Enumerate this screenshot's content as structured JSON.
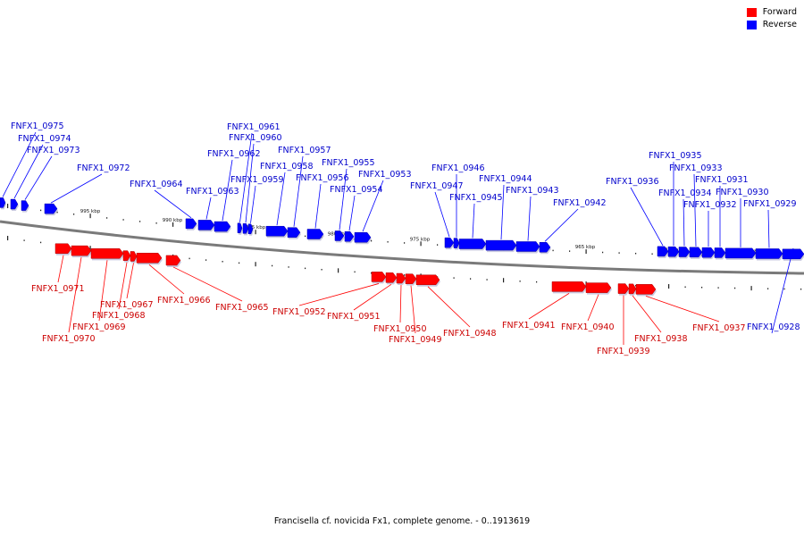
{
  "legend": {
    "forward_label": "Forward",
    "reverse_label": "Reverse",
    "forward_color": "#ff0000",
    "reverse_color": "#0000ff"
  },
  "caption": "Francisella cf. novicida Fx1, complete genome. - 0..1913619",
  "scale_unit": "kbp",
  "scale_ticks": [
    995,
    990,
    985,
    980,
    975,
    970,
    965,
    960,
    955
  ],
  "genes": [
    {
      "id": "FNFX1_0975",
      "strand": "reverse"
    },
    {
      "id": "FNFX1_0974",
      "strand": "reverse"
    },
    {
      "id": "FNFX1_0973",
      "strand": "reverse"
    },
    {
      "id": "FNFX1_0972",
      "strand": "reverse"
    },
    {
      "id": "FNFX1_0971",
      "strand": "forward"
    },
    {
      "id": "FNFX1_0970",
      "strand": "forward"
    },
    {
      "id": "FNFX1_0969",
      "strand": "forward"
    },
    {
      "id": "FNFX1_0968",
      "strand": "forward"
    },
    {
      "id": "FNFX1_0967",
      "strand": "forward"
    },
    {
      "id": "FNFX1_0966",
      "strand": "forward"
    },
    {
      "id": "FNFX1_0965",
      "strand": "forward"
    },
    {
      "id": "FNFX1_0964",
      "strand": "reverse"
    },
    {
      "id": "FNFX1_0963",
      "strand": "reverse"
    },
    {
      "id": "FNFX1_0962",
      "strand": "reverse"
    },
    {
      "id": "FNFX1_0961",
      "strand": "reverse"
    },
    {
      "id": "FNFX1_0960",
      "strand": "reverse"
    },
    {
      "id": "FNFX1_0959",
      "strand": "reverse"
    },
    {
      "id": "FNFX1_0958",
      "strand": "reverse"
    },
    {
      "id": "FNFX1_0957",
      "strand": "reverse"
    },
    {
      "id": "FNFX1_0956",
      "strand": "reverse"
    },
    {
      "id": "FNFX1_0955",
      "strand": "reverse"
    },
    {
      "id": "FNFX1_0954",
      "strand": "reverse"
    },
    {
      "id": "FNFX1_0953",
      "strand": "reverse"
    },
    {
      "id": "FNFX1_0952",
      "strand": "forward"
    },
    {
      "id": "FNFX1_0951",
      "strand": "forward"
    },
    {
      "id": "FNFX1_0950",
      "strand": "forward"
    },
    {
      "id": "FNFX1_0949",
      "strand": "forward"
    },
    {
      "id": "FNFX1_0948",
      "strand": "forward"
    },
    {
      "id": "FNFX1_0947",
      "strand": "reverse"
    },
    {
      "id": "FNFX1_0946",
      "strand": "reverse"
    },
    {
      "id": "FNFX1_0945",
      "strand": "reverse"
    },
    {
      "id": "FNFX1_0944",
      "strand": "reverse"
    },
    {
      "id": "FNFX1_0943",
      "strand": "reverse"
    },
    {
      "id": "FNFX1_0942",
      "strand": "reverse"
    },
    {
      "id": "FNFX1_0941",
      "strand": "forward"
    },
    {
      "id": "FNFX1_0940",
      "strand": "forward"
    },
    {
      "id": "FNFX1_0939",
      "strand": "forward"
    },
    {
      "id": "FNFX1_0938",
      "strand": "forward"
    },
    {
      "id": "FNFX1_0937",
      "strand": "forward"
    },
    {
      "id": "FNFX1_0936",
      "strand": "reverse"
    },
    {
      "id": "FNFX1_0935",
      "strand": "reverse"
    },
    {
      "id": "FNFX1_0934",
      "strand": "reverse"
    },
    {
      "id": "FNFX1_0933",
      "strand": "reverse"
    },
    {
      "id": "FNFX1_0932",
      "strand": "reverse"
    },
    {
      "id": "FNFX1_0931",
      "strand": "reverse"
    },
    {
      "id": "FNFX1_0930",
      "strand": "reverse"
    },
    {
      "id": "FNFX1_0929",
      "strand": "reverse"
    },
    {
      "id": "FNFX1_0928",
      "strand": "reverse"
    }
  ]
}
